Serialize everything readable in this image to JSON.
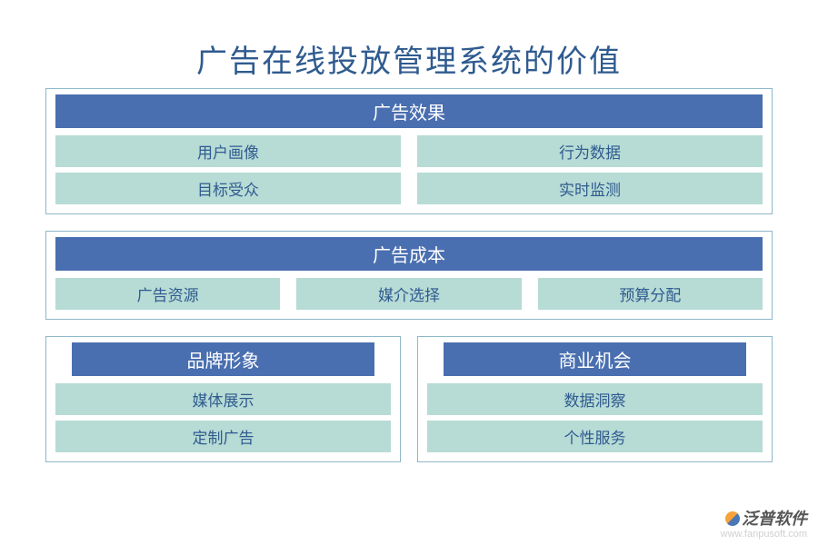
{
  "colors": {
    "title_color": "#2f5b8f",
    "panel_border": "#8fb8c8",
    "header_bg": "#4a6fb0",
    "header_fg": "#ffffff",
    "cell_bg": "#b7dbd5",
    "cell_fg": "#2f5b8f"
  },
  "title": "广告在线投放管理系统的价值",
  "section1": {
    "header": "广告效果",
    "rows": [
      [
        "用户画像",
        "行为数据"
      ],
      [
        "目标受众",
        "实时监测"
      ]
    ]
  },
  "section2": {
    "header": "广告成本",
    "rows": [
      [
        "广告资源",
        "媒介选择",
        "预算分配"
      ]
    ]
  },
  "section3": {
    "left": {
      "header": "品牌形象",
      "items": [
        "媒体展示",
        "定制广告"
      ]
    },
    "right": {
      "header": "商业机会",
      "items": [
        "数据洞察",
        "个性服务"
      ]
    }
  },
  "watermark": {
    "brand": "泛普软件",
    "url": "www.fanpusoft.com"
  }
}
